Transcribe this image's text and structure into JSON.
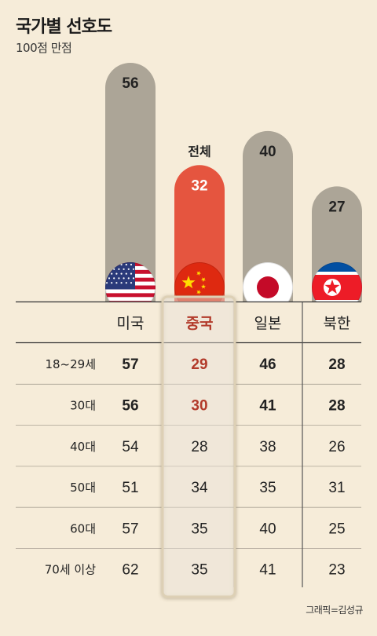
{
  "title": "국가별 선호도",
  "subtitle": "100점 만점",
  "credit": "그래픽=김성규",
  "colors": {
    "gray_bar": "#aca597",
    "highlight_bar": "#e5553f",
    "highlight_text": "#b23a2a",
    "background": "#f6ecd9"
  },
  "chart_data": {
    "type": "bar",
    "title": "국가별 선호도",
    "subtitle": "100점 만점",
    "categories": [
      "미국",
      "중국",
      "일본",
      "북한"
    ],
    "flag_icons": [
      "us-flag-icon",
      "china-flag-icon",
      "japan-flag-icon",
      "north-korea-flag-icon"
    ],
    "highlight_category": "중국",
    "highlight_label": "전체",
    "series": [
      {
        "name": "전체",
        "values": [
          56,
          32,
          40,
          27
        ]
      }
    ],
    "table": {
      "row_labels": [
        "18~29세",
        "30대",
        "40대",
        "50대",
        "60대",
        "70세 이상"
      ],
      "bold_rows": [
        "18~29세",
        "30대"
      ],
      "values": [
        [
          57,
          29,
          46,
          28
        ],
        [
          56,
          30,
          41,
          28
        ],
        [
          54,
          28,
          38,
          26
        ],
        [
          51,
          34,
          35,
          31
        ],
        [
          57,
          35,
          40,
          25
        ],
        [
          62,
          35,
          41,
          23
        ]
      ]
    }
  }
}
